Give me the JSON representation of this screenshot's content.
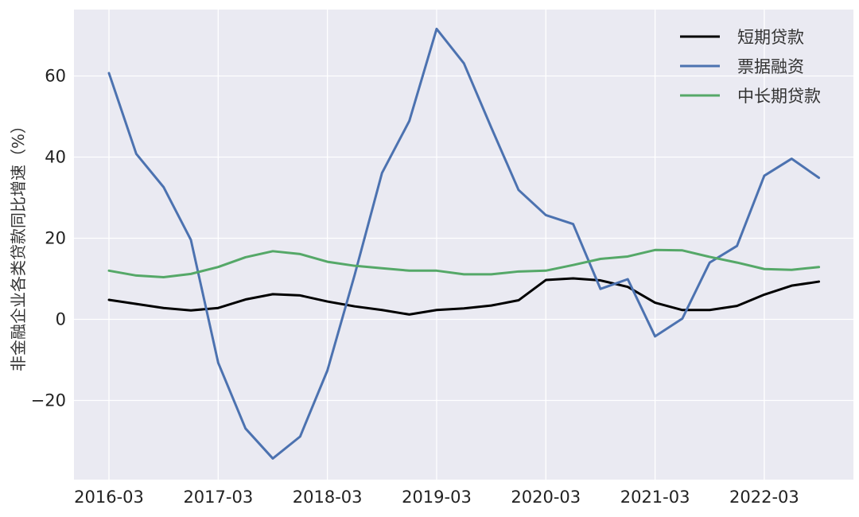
{
  "chart_data": {
    "type": "line",
    "title": "",
    "xlabel": "",
    "ylabel": "非金融企业各类贷款同比增速（%）",
    "x": [
      "2016-03",
      "2016-06",
      "2016-09",
      "2016-12",
      "2017-03",
      "2017-06",
      "2017-09",
      "2017-12",
      "2018-03",
      "2018-06",
      "2018-09",
      "2018-12",
      "2019-03",
      "2019-06",
      "2019-09",
      "2019-12",
      "2020-03",
      "2020-06",
      "2020-09",
      "2020-12",
      "2021-03",
      "2021-06",
      "2021-09",
      "2021-12",
      "2022-03",
      "2022-06",
      "2022-09"
    ],
    "x_tick_labels": [
      "2016-03",
      "2017-03",
      "2018-03",
      "2019-03",
      "2020-03",
      "2021-03",
      "2022-03"
    ],
    "x_tick_indices": [
      0,
      4,
      8,
      12,
      16,
      20,
      24
    ],
    "y_ticks": [
      -20,
      0,
      20,
      40,
      60
    ],
    "ylim": [
      -39.5,
      77
    ],
    "grid": true,
    "legend_position": "top-right",
    "series": [
      {
        "name": "短期贷款",
        "color": "#000000",
        "values": [
          4.8,
          3.8,
          2.8,
          2.2,
          2.8,
          4.9,
          6.2,
          5.9,
          4.4,
          3.2,
          2.3,
          1.2,
          2.3,
          2.7,
          3.4,
          4.7,
          9.7,
          10.1,
          9.6,
          8.0,
          4.1,
          2.3,
          2.3,
          3.3,
          6.1,
          8.3,
          9.3
        ]
      },
      {
        "name": "票据融资",
        "color": "#4C72B0",
        "values": [
          60.7,
          40.8,
          32.6,
          19.6,
          -10.7,
          -26.9,
          -34.3,
          -28.9,
          -12.6,
          11.0,
          36.1,
          48.9,
          71.6,
          63.1,
          47.3,
          31.9,
          25.7,
          23.5,
          7.5,
          9.9,
          -4.2,
          0.2,
          14.0,
          18.1,
          35.4,
          39.6,
          34.9
        ]
      },
      {
        "name": "中长期贷款",
        "color": "#55A868",
        "values": [
          12.0,
          10.8,
          10.4,
          11.2,
          12.9,
          15.3,
          16.8,
          16.1,
          14.2,
          13.2,
          12.6,
          12.0,
          12.0,
          11.1,
          11.1,
          11.8,
          12.0,
          13.4,
          14.9,
          15.5,
          17.1,
          17.0,
          15.4,
          14.0,
          12.4,
          12.2,
          12.9
        ]
      }
    ]
  },
  "colors": {
    "plot_background": "#EAEAF2",
    "grid": "#FFFFFF"
  }
}
